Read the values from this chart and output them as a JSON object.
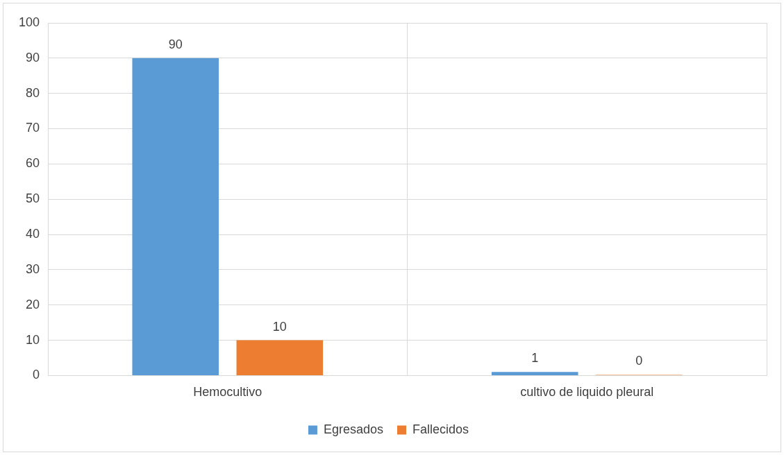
{
  "chart_data": {
    "type": "bar",
    "categories": [
      "Hemocultivo",
      "cultivo de liquido pleural"
    ],
    "series": [
      {
        "name": "Egresados",
        "color": "#5b9bd5",
        "values": [
          90,
          1
        ]
      },
      {
        "name": "Fallecidos",
        "color": "#ed7d31",
        "values": [
          10,
          0
        ]
      }
    ],
    "ylim": [
      0,
      100
    ],
    "yticks": [
      0,
      10,
      20,
      30,
      40,
      50,
      60,
      70,
      80,
      90,
      100
    ],
    "grid": true,
    "legend": "bottom",
    "data_labels": true
  }
}
